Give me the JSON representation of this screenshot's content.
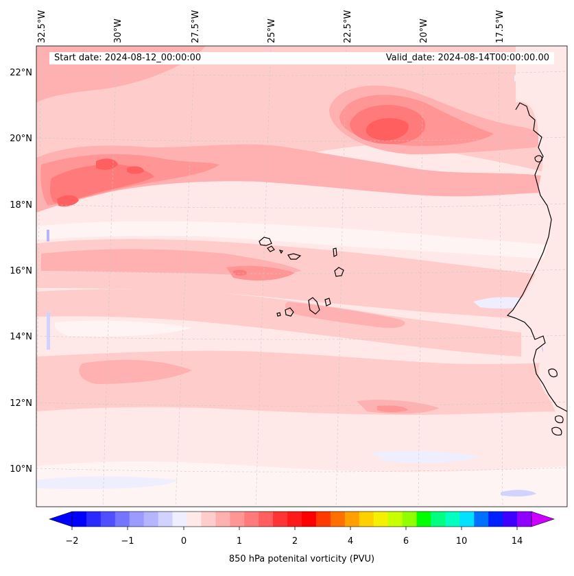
{
  "map": {
    "start_date": "Start date: 2024-08-12_00:00:00",
    "valid_date": "Valid_date: 2024-08-14T00:00:00.00",
    "lon_labels": [
      "32.5°W",
      "30°W",
      "27.5°W",
      "25°W",
      "22.5°W",
      "20°W",
      "17.5°W"
    ],
    "lat_labels": [
      "22°N",
      "20°N",
      "18°N",
      "16°N",
      "14°N",
      "12°N",
      "10°N"
    ],
    "region": "Eastern tropical Atlantic / Cabo Verde / West African coast"
  },
  "colorbar": {
    "label": "850 hPa potenital vorticity (PVU)",
    "tick_labels": [
      "−2",
      "−1",
      "0",
      "1",
      "2",
      "4",
      "6",
      "10",
      "14"
    ],
    "colors": [
      "#0000ff",
      "#2a2aff",
      "#4f4fff",
      "#7575ff",
      "#9a9aff",
      "#b5b5ff",
      "#d2d2ff",
      "#eeeeff",
      "#ffe8e8",
      "#ffcccc",
      "#ffb0b0",
      "#ff9595",
      "#ff7b7b",
      "#ff5f5f",
      "#ff3434",
      "#ff1a1a",
      "#ff0000",
      "#ff3a00",
      "#ff7000",
      "#ffa000",
      "#ffd000",
      "#f5f000",
      "#c8ff00",
      "#90ff00",
      "#00ff00",
      "#00ff80",
      "#00ffc0",
      "#00e0ff",
      "#0070ff",
      "#0020ff",
      "#4000ff",
      "#9000ff"
    ],
    "extend_low_color": "#0000ff",
    "extend_high_color": "#cc00ff"
  }
}
